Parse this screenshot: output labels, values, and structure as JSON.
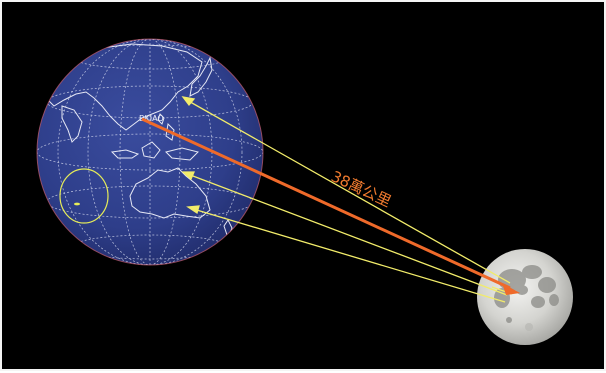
{
  "diagram": {
    "distance_label": "38萬公里",
    "station_label": "BKIAO",
    "colors": {
      "background": "#000000",
      "earth_ocean": "#2e3e8a",
      "coastline": "#e6e8f5",
      "laser_main": "#ef6a2a",
      "laser_beams": "#f2ec6a",
      "label": "#f07a2e"
    }
  }
}
